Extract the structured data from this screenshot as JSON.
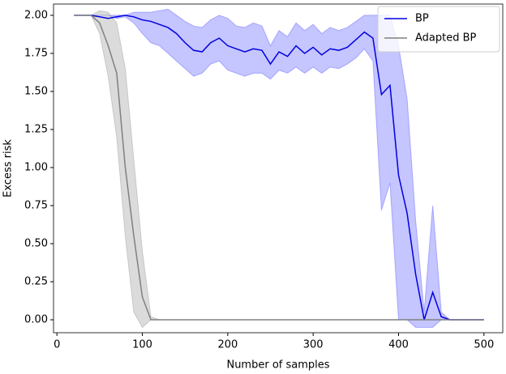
{
  "chart_data": {
    "type": "line",
    "xlabel": "Number of samples",
    "ylabel": "Excess risk",
    "x": [
      20,
      30,
      40,
      50,
      60,
      70,
      80,
      90,
      100,
      110,
      120,
      130,
      140,
      150,
      160,
      170,
      180,
      190,
      200,
      210,
      220,
      230,
      240,
      250,
      260,
      270,
      280,
      290,
      300,
      310,
      320,
      330,
      340,
      350,
      360,
      370,
      380,
      390,
      400,
      410,
      420,
      430,
      440,
      450,
      460,
      470,
      480,
      490,
      500
    ],
    "series": [
      {
        "name": "BP",
        "color": "#0000e0",
        "band_color": "#7f7fff",
        "values": [
          2.0,
          2.0,
          2.0,
          1.99,
          1.98,
          1.99,
          2.0,
          1.99,
          1.97,
          1.96,
          1.94,
          1.92,
          1.88,
          1.82,
          1.77,
          1.76,
          1.82,
          1.85,
          1.8,
          1.78,
          1.76,
          1.78,
          1.77,
          1.68,
          1.76,
          1.73,
          1.8,
          1.75,
          1.79,
          1.74,
          1.78,
          1.77,
          1.79,
          1.84,
          1.89,
          1.85,
          1.48,
          1.54,
          0.95,
          0.7,
          0.3,
          0.0,
          0.18,
          0.02,
          0,
          0,
          0,
          0,
          0
        ],
        "lower": [
          2.0,
          2.0,
          2.0,
          2.0,
          2.0,
          1.98,
          1.99,
          1.95,
          1.88,
          1.82,
          1.8,
          1.75,
          1.7,
          1.65,
          1.6,
          1.62,
          1.68,
          1.7,
          1.64,
          1.62,
          1.6,
          1.62,
          1.62,
          1.58,
          1.64,
          1.62,
          1.66,
          1.62,
          1.66,
          1.62,
          1.66,
          1.65,
          1.68,
          1.72,
          1.78,
          1.7,
          0.72,
          0.9,
          0.0,
          0.0,
          -0.05,
          -0.05,
          -0.05,
          0.0,
          0,
          0,
          0,
          0,
          0
        ],
        "upper": [
          2.0,
          2.0,
          2.0,
          2.0,
          2.0,
          2.0,
          2.0,
          2.02,
          2.02,
          2.02,
          2.03,
          2.04,
          2.0,
          1.96,
          1.93,
          1.92,
          1.97,
          2.0,
          1.98,
          1.93,
          1.92,
          1.95,
          1.93,
          1.8,
          1.9,
          1.86,
          1.95,
          1.9,
          1.94,
          1.88,
          1.92,
          1.9,
          1.92,
          1.96,
          2.0,
          2.0,
          2.0,
          2.0,
          1.8,
          1.45,
          0.65,
          0.05,
          0.75,
          0.05,
          0,
          0,
          0,
          0,
          0
        ]
      },
      {
        "name": "Adapted BP",
        "color": "#808080",
        "band_color": "#b0b0b0",
        "values": [
          2.0,
          2.0,
          2.0,
          1.95,
          1.8,
          1.62,
          1.0,
          0.55,
          0.15,
          0,
          0,
          0,
          0,
          0,
          0,
          0,
          0,
          0,
          0,
          0,
          0,
          0,
          0,
          0,
          0,
          0,
          0,
          0,
          0,
          0,
          0,
          0,
          0,
          0,
          0,
          0,
          0,
          0,
          0,
          0,
          0,
          0,
          0,
          0,
          0,
          0,
          0,
          0,
          0
        ],
        "lower": [
          2.0,
          2.0,
          2.0,
          1.88,
          1.6,
          1.2,
          0.55,
          0.05,
          -0.05,
          0,
          0,
          0,
          0,
          0,
          0,
          0,
          0,
          0,
          0,
          0,
          0,
          0,
          0,
          0,
          0,
          0,
          0,
          0,
          0,
          0,
          0,
          0,
          0,
          0,
          0,
          0,
          0,
          0,
          0,
          0,
          0,
          0,
          0,
          0,
          0,
          0,
          0,
          0,
          0
        ],
        "upper": [
          2.0,
          2.0,
          2.0,
          2.03,
          2.02,
          1.95,
          1.65,
          1.05,
          0.45,
          0.02,
          0,
          0,
          0,
          0,
          0,
          0,
          0,
          0,
          0,
          0,
          0,
          0,
          0,
          0,
          0,
          0,
          0,
          0,
          0,
          0,
          0,
          0,
          0,
          0,
          0,
          0,
          0,
          0,
          0,
          0,
          0,
          0,
          0,
          0,
          0,
          0,
          0,
          0,
          0
        ]
      }
    ],
    "xlim": [
      -4,
      522
    ],
    "ylim": [
      -0.085,
      2.074
    ],
    "xticks": [
      0,
      100,
      200,
      300,
      400,
      500
    ],
    "yticks": [
      {
        "value": 0,
        "label": "0.00"
      },
      {
        "value": 0.25,
        "label": "0.25"
      },
      {
        "value": 0.5,
        "label": "0.50"
      },
      {
        "value": 0.75,
        "label": "0.75"
      },
      {
        "value": 1,
        "label": "1.00"
      },
      {
        "value": 1.25,
        "label": "1.25"
      },
      {
        "value": 1.5,
        "label": "1.50"
      },
      {
        "value": 1.75,
        "label": "1.75"
      },
      {
        "value": 2,
        "label": "2.00"
      }
    ],
    "legend": "upper right",
    "grid": false
  }
}
